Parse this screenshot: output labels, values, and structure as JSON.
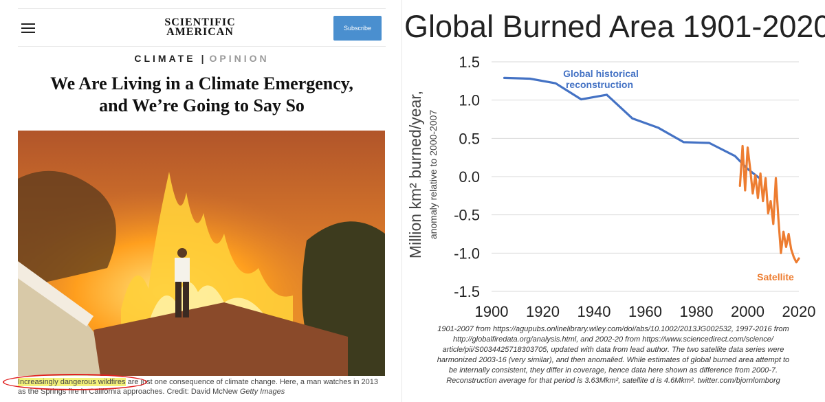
{
  "article": {
    "brand": "SCIENTIFIC AMERICAN",
    "subscribe_label": "Subscribe",
    "section": "CLIMATE",
    "section_sep": "|",
    "section_tag": "OPINION",
    "headline_line1": "We Are Living in a Climate Emergency,",
    "headline_line2": "and We’re Going to Say So",
    "caption_highlight": "Increasingly dangerous wildfires",
    "caption_rest": " are just one consequence of climate change. Here, a man watches in 2013 as the Springs fire in California approaches. Credit: David McNew ",
    "caption_credit": "Getty Images"
  },
  "chart_title": "Global Burned Area 1901-2020",
  "chart_data": {
    "type": "line",
    "title": "Global Burned Area 1901-2020",
    "xlabel": "",
    "ylabel": "Million km² burned/year,",
    "ylabel_sub": "anomaly relative to 2000-2007",
    "xlim": [
      1900,
      2020
    ],
    "ylim": [
      -1.5,
      1.5
    ],
    "x_ticks": [
      "1900",
      "1920",
      "1940",
      "1960",
      "1980",
      "2000",
      "2020"
    ],
    "y_ticks": [
      "1.5",
      "1.0",
      "0.5",
      "0.0",
      "-0.5",
      "-1.0",
      "-1.5"
    ],
    "grid": "horizontal",
    "series": [
      {
        "name": "Global historical reconstruction",
        "label_line1": "Global historical",
        "label_line2": "reconstruction",
        "color": "#4472C4",
        "x": [
          1905,
          1915,
          1925,
          1935,
          1945,
          1955,
          1965,
          1975,
          1985,
          1995,
          2000,
          2005
        ],
        "y": [
          1.29,
          1.28,
          1.22,
          1.01,
          1.07,
          0.76,
          0.64,
          0.45,
          0.44,
          0.27,
          0.1,
          -0.03
        ]
      },
      {
        "name": "Satellite",
        "label": "Satellite",
        "color": "#ED7D31",
        "x": [
          1997,
          1998,
          1999,
          2000,
          2001,
          2002,
          2003,
          2004,
          2005,
          2006,
          2007,
          2008,
          2009,
          2010,
          2011,
          2012,
          2013,
          2014,
          2015,
          2016,
          2017,
          2018,
          2019,
          2020
        ],
        "y": [
          -0.12,
          0.4,
          -0.18,
          0.38,
          0.1,
          -0.22,
          0.02,
          -0.28,
          0.04,
          -0.32,
          -0.02,
          -0.48,
          -0.32,
          -0.62,
          -0.02,
          -0.55,
          -1.0,
          -0.72,
          -0.92,
          -0.75,
          -0.95,
          -1.05,
          -1.12,
          -1.07
        ]
      }
    ]
  },
  "source_text": [
    "1901-2007 from https://agupubs.onlinelibrary.wiley.com/doi/abs/10.1002/2013JG002532, 1997-2016 from",
    "http://globalfiredata.org/analysis.html, and 2002-20 from https://www.sciencedirect.com/science/",
    "article/pii/S0034425718303705, updated with data from lead author. The two satellite data series were",
    "harmonized 2003-16 (very similar), and then anomalied. While estimates of global burned area attempt to",
    "be internally consistent, they differ in coverage, hence data here shown as difference from 2000-7.",
    "Reconstruction average for that period is 3.63Mkm², satellite d is 4.6Mkm². twitter.com/bjornlomborg"
  ],
  "colors": {
    "reconstruction": "#4472C4",
    "satellite": "#ED7D31",
    "subscribe": "#4a8fcf",
    "highlight": "#f4f27a",
    "circle": "#e02020"
  }
}
